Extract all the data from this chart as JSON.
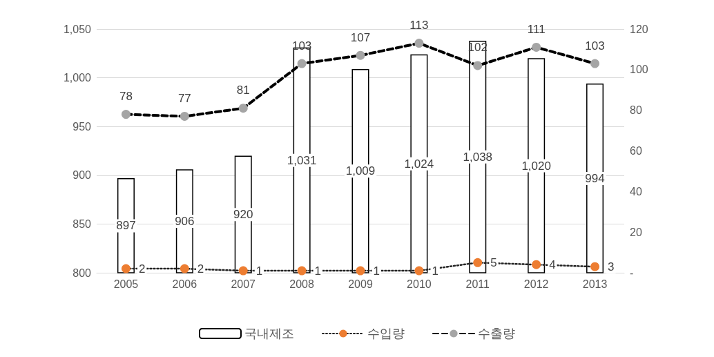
{
  "chart_data": {
    "type": "bar",
    "categories": [
      "2005",
      "2006",
      "2007",
      "2008",
      "2009",
      "2010",
      "2011",
      "2012",
      "2013"
    ],
    "series": [
      {
        "name": "국내제조",
        "color": "#ffffff",
        "values": [
          897,
          906,
          920,
          1031,
          1009,
          1024,
          1038,
          1020,
          994
        ],
        "value_labels": [
          "897",
          "906",
          "920",
          "1,031",
          "1,009",
          "1,024",
          "1,038",
          "1,020",
          "994"
        ]
      },
      {
        "name": "수입량",
        "type": "line",
        "axis": "y2",
        "color": "#ed7d31",
        "line_style": "dotted",
        "marker": "circle",
        "values": [
          2,
          2,
          1,
          1,
          1,
          1,
          5,
          4,
          3
        ],
        "value_labels": [
          "2",
          "2",
          "1",
          "1",
          "1",
          "1",
          "5",
          "4",
          "3"
        ]
      },
      {
        "name": "수출량",
        "type": "line",
        "axis": "y2",
        "color": "#a5a5a5",
        "line_style": "dashed",
        "marker": "circle",
        "values": [
          78,
          77,
          81,
          103,
          107,
          113,
          102,
          111,
          103
        ],
        "value_labels": [
          "78",
          "77",
          "81",
          "103",
          "107",
          "113",
          "102",
          "111",
          "103"
        ]
      }
    ],
    "ylim": [
      800,
      1050
    ],
    "yticks": [
      800,
      850,
      900,
      950,
      {
        "value": 1000,
        "label": "1,000"
      },
      {
        "value": 1050,
        "label": "1,050"
      }
    ],
    "y2lim": [
      0,
      120
    ],
    "y2ticks": [
      {
        "value": 0,
        "label": "-"
      },
      20,
      40,
      60,
      80,
      100,
      120
    ],
    "grid": "y",
    "legend": "bottom"
  }
}
